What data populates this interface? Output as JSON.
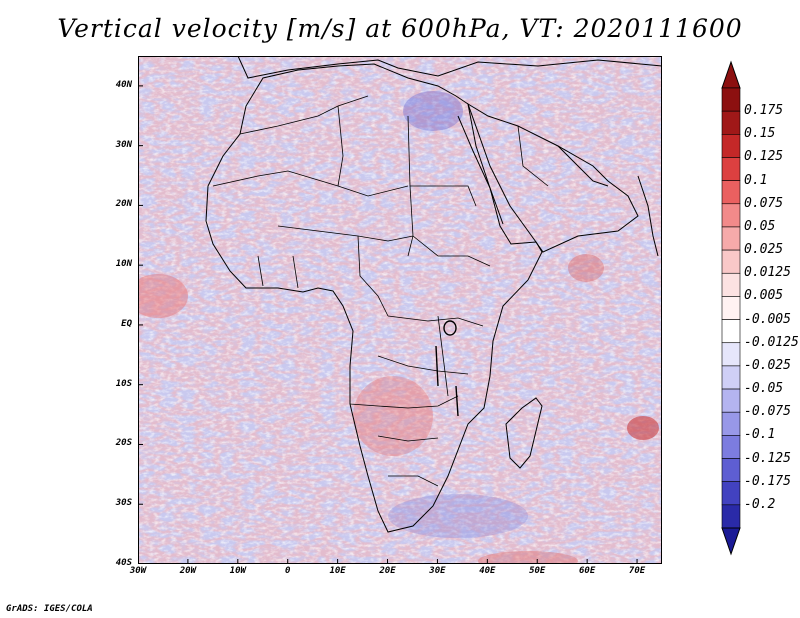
{
  "title": "Vertical velocity [m/s] at 600hPa, VT: 2020111600",
  "credit": "GrADS: IGES/COLA",
  "map": {
    "variable": "Vertical velocity",
    "units": "m/s",
    "level": "600hPa",
    "valid_time": "2020111600",
    "lat_range": [
      -40,
      45
    ],
    "lon_range": [
      -30,
      75
    ],
    "lat_ticks": [
      {
        "value": 40,
        "label": "40N"
      },
      {
        "value": 30,
        "label": "30N"
      },
      {
        "value": 20,
        "label": "20N"
      },
      {
        "value": 10,
        "label": "10N"
      },
      {
        "value": 0,
        "label": "EQ"
      },
      {
        "value": -10,
        "label": "10S"
      },
      {
        "value": -20,
        "label": "20S"
      },
      {
        "value": -30,
        "label": "30S"
      },
      {
        "value": -40,
        "label": "40S"
      }
    ],
    "lon_ticks": [
      {
        "value": -30,
        "label": "30W"
      },
      {
        "value": -20,
        "label": "20W"
      },
      {
        "value": -10,
        "label": "10W"
      },
      {
        "value": 0,
        "label": "0"
      },
      {
        "value": 10,
        "label": "10E"
      },
      {
        "value": 20,
        "label": "20E"
      },
      {
        "value": 30,
        "label": "30E"
      },
      {
        "value": 40,
        "label": "40E"
      },
      {
        "value": 50,
        "label": "50E"
      },
      {
        "value": 60,
        "label": "60E"
      },
      {
        "value": 70,
        "label": "70E"
      }
    ]
  },
  "colorbar": {
    "levels": [
      {
        "label": "0.175",
        "color": "#a01818"
      },
      {
        "label": "0.15",
        "color": "#c42828"
      },
      {
        "label": "0.125",
        "color": "#dc4040"
      },
      {
        "label": "0.1",
        "color": "#ea6060"
      },
      {
        "label": "0.075",
        "color": "#f28a8a"
      },
      {
        "label": "0.05",
        "color": "#f6aaaa"
      },
      {
        "label": "0.025",
        "color": "#f9c8c8"
      },
      {
        "label": "0.0125",
        "color": "#fce2e2"
      },
      {
        "label": "0.005",
        "color": "#fff2f2"
      },
      {
        "label": "-0.005",
        "color": "#ffffff"
      },
      {
        "label": "-0.0125",
        "color": "#e6e6fb"
      },
      {
        "label": "-0.025",
        "color": "#cfcff6"
      },
      {
        "label": "-0.05",
        "color": "#b4b4f0"
      },
      {
        "label": "-0.075",
        "color": "#9898e8"
      },
      {
        "label": "-0.1",
        "color": "#7c7cdf"
      },
      {
        "label": "-0.125",
        "color": "#5e5ed2"
      },
      {
        "label": "-0.175",
        "color": "#4242c0"
      },
      {
        "label": "-0.2",
        "color": "#2a2aa8"
      }
    ],
    "top_color": "#8c1010",
    "mid_color": "#ffffff",
    "bottom_color": "#1a1a96"
  }
}
